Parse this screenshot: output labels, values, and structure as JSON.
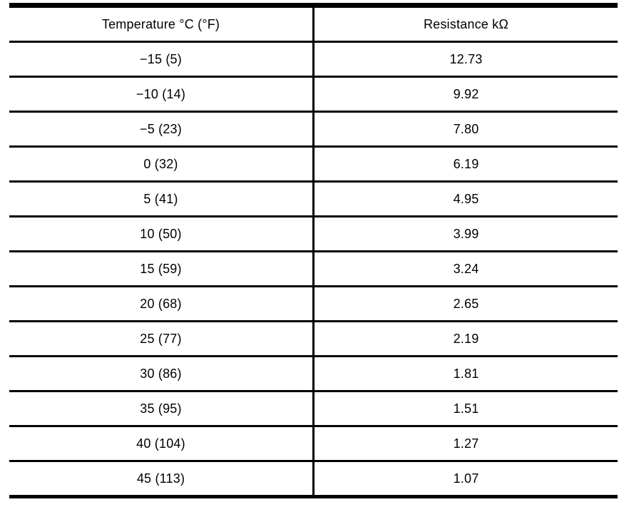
{
  "page": {
    "background_color": "#ffffff",
    "rule_color": "#000000",
    "text_color": "#000000"
  },
  "table": {
    "columns": [
      {
        "label": "Temperature °C (°F)"
      },
      {
        "label": "Resistance kΩ"
      }
    ],
    "rows": [
      {
        "temperature": "−15 (5)",
        "resistance": "12.73"
      },
      {
        "temperature": "−10 (14)",
        "resistance": "9.92"
      },
      {
        "temperature": "−5 (23)",
        "resistance": "7.80"
      },
      {
        "temperature": "0 (32)",
        "resistance": "6.19"
      },
      {
        "temperature": "5 (41)",
        "resistance": "4.95"
      },
      {
        "temperature": "10 (50)",
        "resistance": "3.99"
      },
      {
        "temperature": "15 (59)",
        "resistance": "3.24"
      },
      {
        "temperature": "20 (68)",
        "resistance": "2.65"
      },
      {
        "temperature": "25 (77)",
        "resistance": "2.19"
      },
      {
        "temperature": "30 (86)",
        "resistance": "1.81"
      },
      {
        "temperature": "35 (95)",
        "resistance": "1.51"
      },
      {
        "temperature": "40 (104)",
        "resistance": "1.27"
      },
      {
        "temperature": "45 (113)",
        "resistance": "1.07"
      }
    ]
  },
  "chart_data": {
    "type": "table",
    "columns": [
      "Temperature °C (°F)",
      "Resistance kΩ"
    ],
    "temperature_c": [
      -15,
      -10,
      -5,
      0,
      5,
      10,
      15,
      20,
      25,
      30,
      35,
      40,
      45
    ],
    "temperature_f": [
      5,
      14,
      23,
      32,
      41,
      50,
      59,
      68,
      77,
      86,
      95,
      104,
      113
    ],
    "resistance_kohm": [
      12.73,
      9.92,
      7.8,
      6.19,
      4.95,
      3.99,
      3.24,
      2.65,
      2.19,
      1.81,
      1.51,
      1.27,
      1.07
    ]
  }
}
